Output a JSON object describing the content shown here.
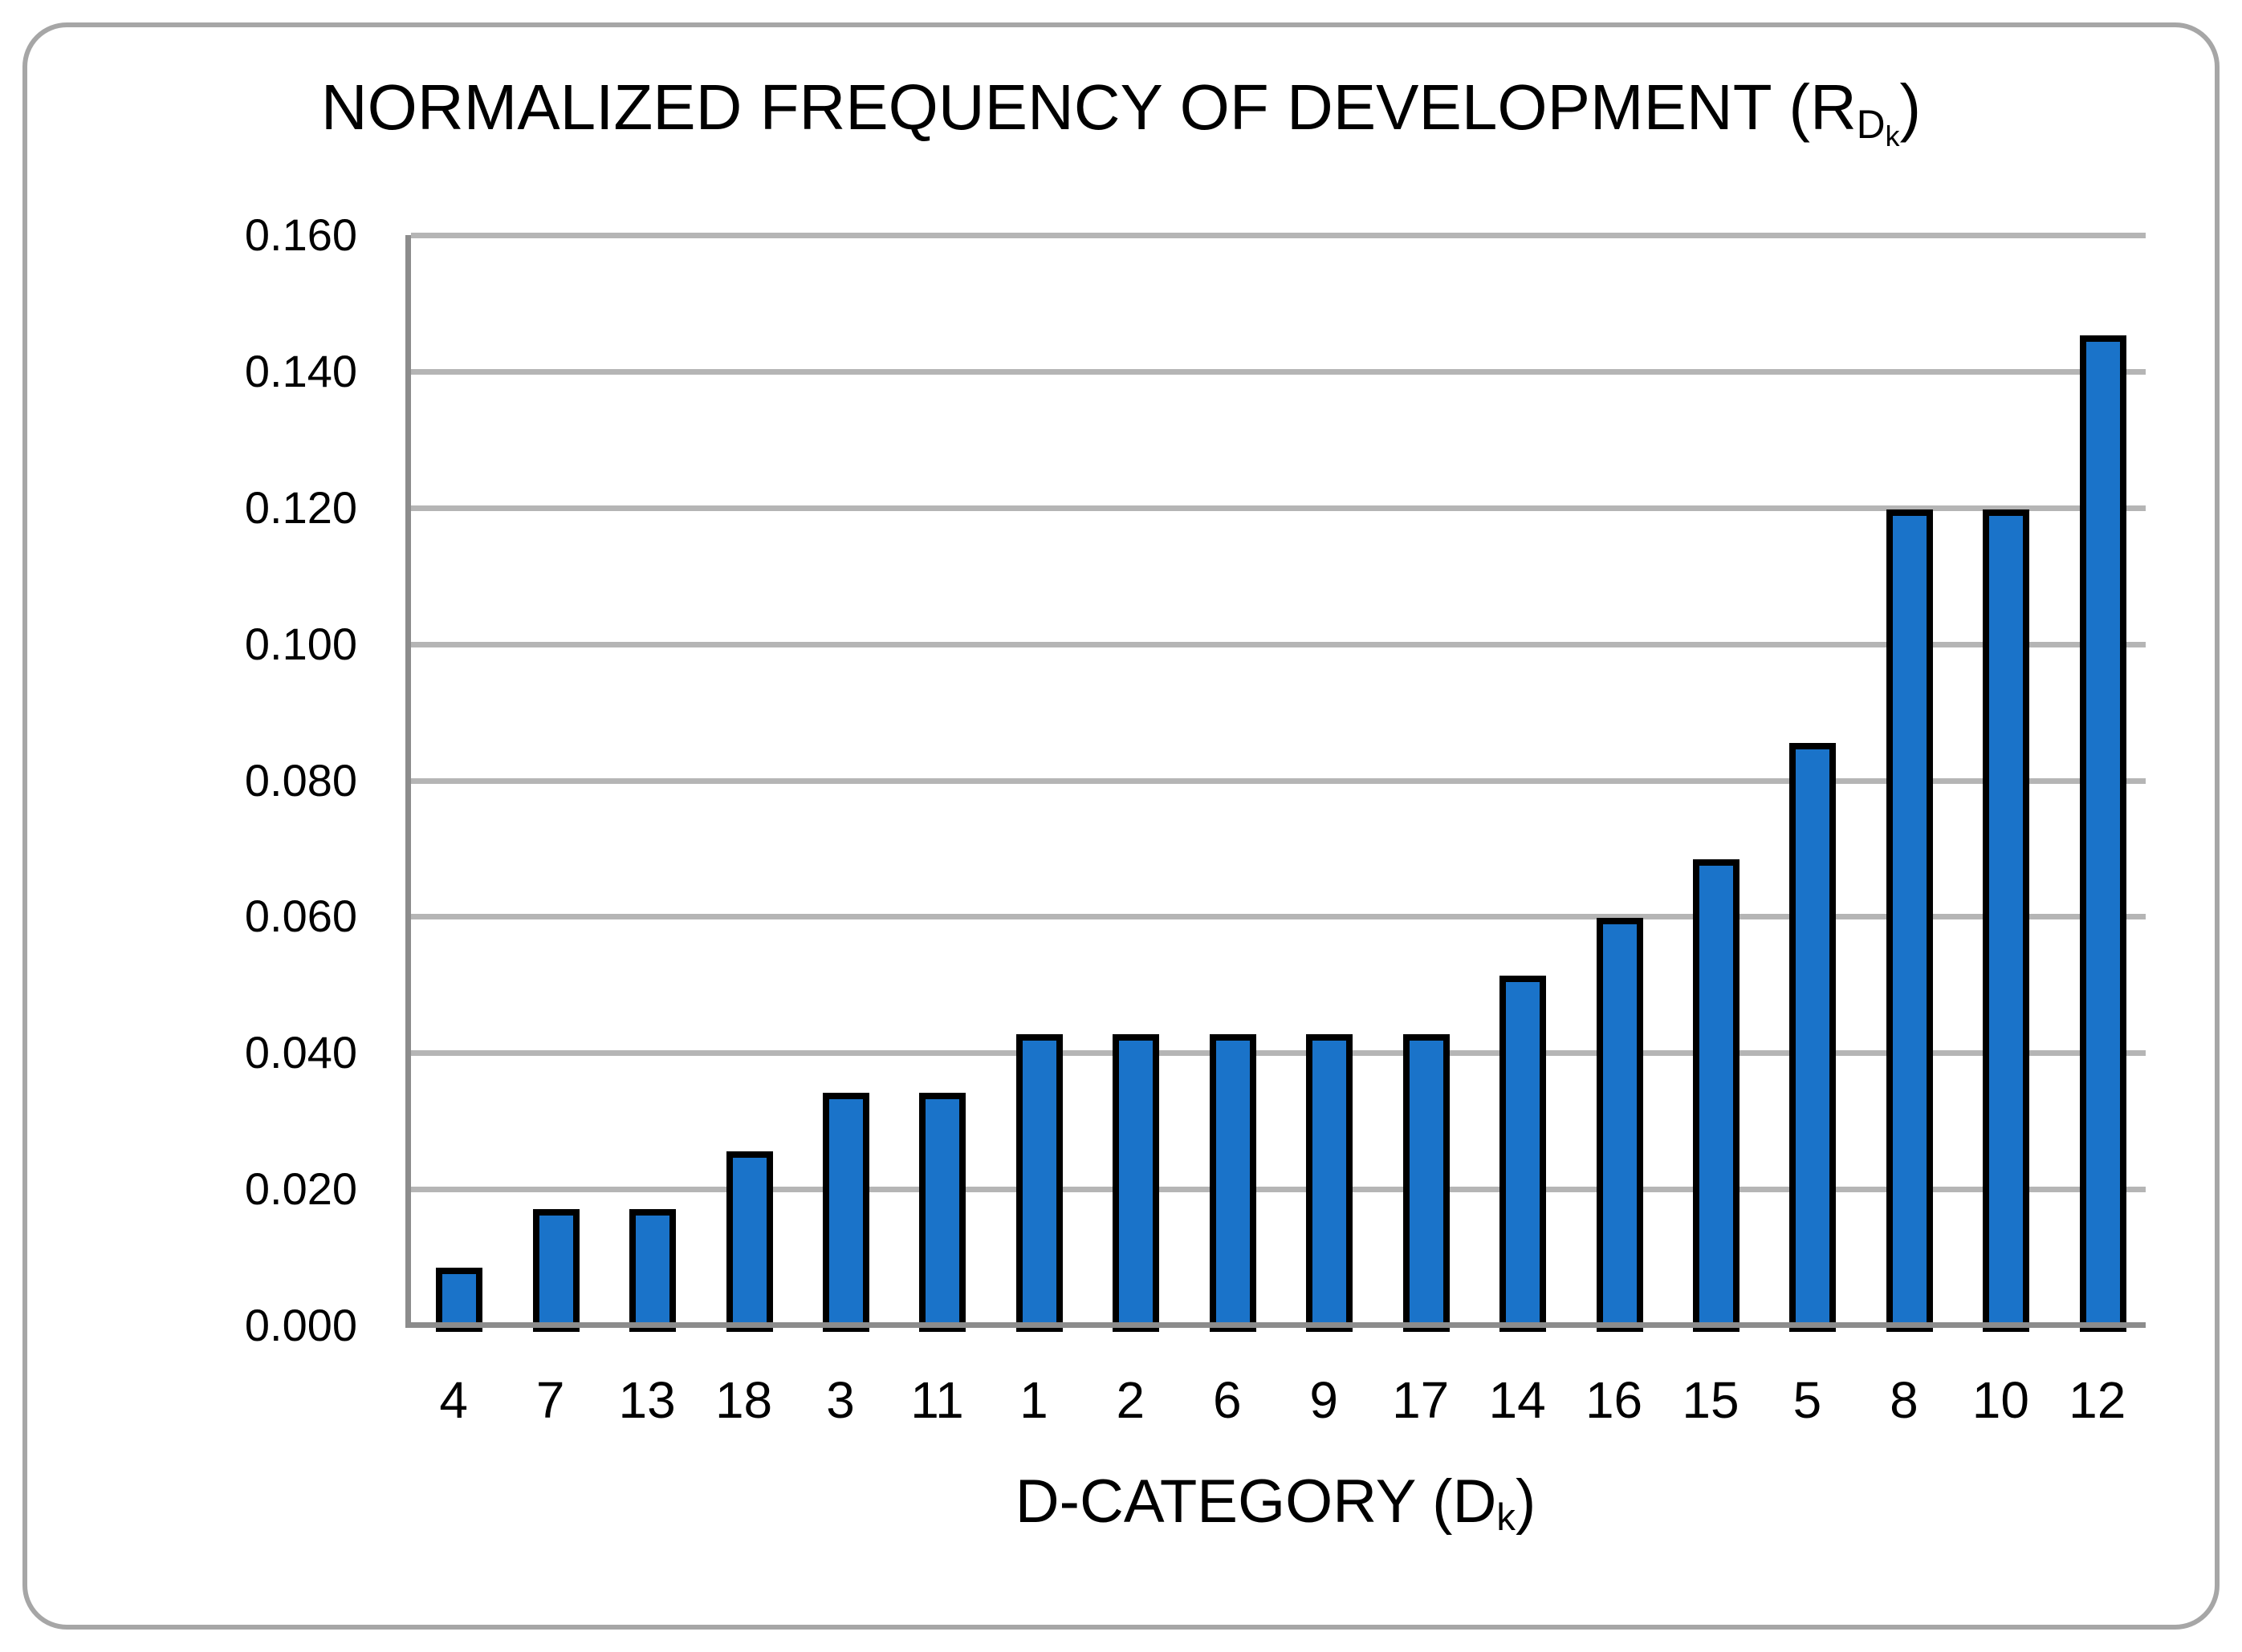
{
  "chart_data": {
    "type": "bar",
    "title": "NORMALIZED FREQUENCY OF DEVELOPMENT (RDk)",
    "title_parts": {
      "main": "NORMALIZED FREQUENCY OF DEVELOPMENT (R",
      "sub": "D",
      "subsub": "k",
      "close": ")"
    },
    "xlabel": "D-CATEGORY (Dk)",
    "xlabel_parts": {
      "main": "D-CATEGORY (D",
      "sub": "k",
      "close": ")"
    },
    "ylabel": "",
    "categories": [
      "4",
      "7",
      "13",
      "18",
      "3",
      "11",
      "1",
      "2",
      "6",
      "9",
      "17",
      "14",
      "16",
      "15",
      "5",
      "8",
      "10",
      "12"
    ],
    "values": [
      0.0085,
      0.0171,
      0.0171,
      0.0256,
      0.0342,
      0.0342,
      0.0427,
      0.0427,
      0.0427,
      0.0427,
      0.0427,
      0.0513,
      0.0598,
      0.0684,
      0.0855,
      0.1197,
      0.1197,
      0.1453
    ],
    "ylim": [
      0,
      0.16
    ],
    "ytick_step": 0.02,
    "ytick_labels": [
      "0.000",
      "0.020",
      "0.040",
      "0.060",
      "0.080",
      "0.100",
      "0.120",
      "0.140",
      "0.160"
    ],
    "grid": true,
    "legend": false,
    "colors": {
      "bar_fill": "#1A73C9",
      "bar_border": "#000000",
      "gridline": "#B5B5B5",
      "axis_line": "#8C8C8C",
      "frame_border": "#A6A6A6",
      "text": "#000000",
      "background": "#FFFFFF"
    }
  }
}
